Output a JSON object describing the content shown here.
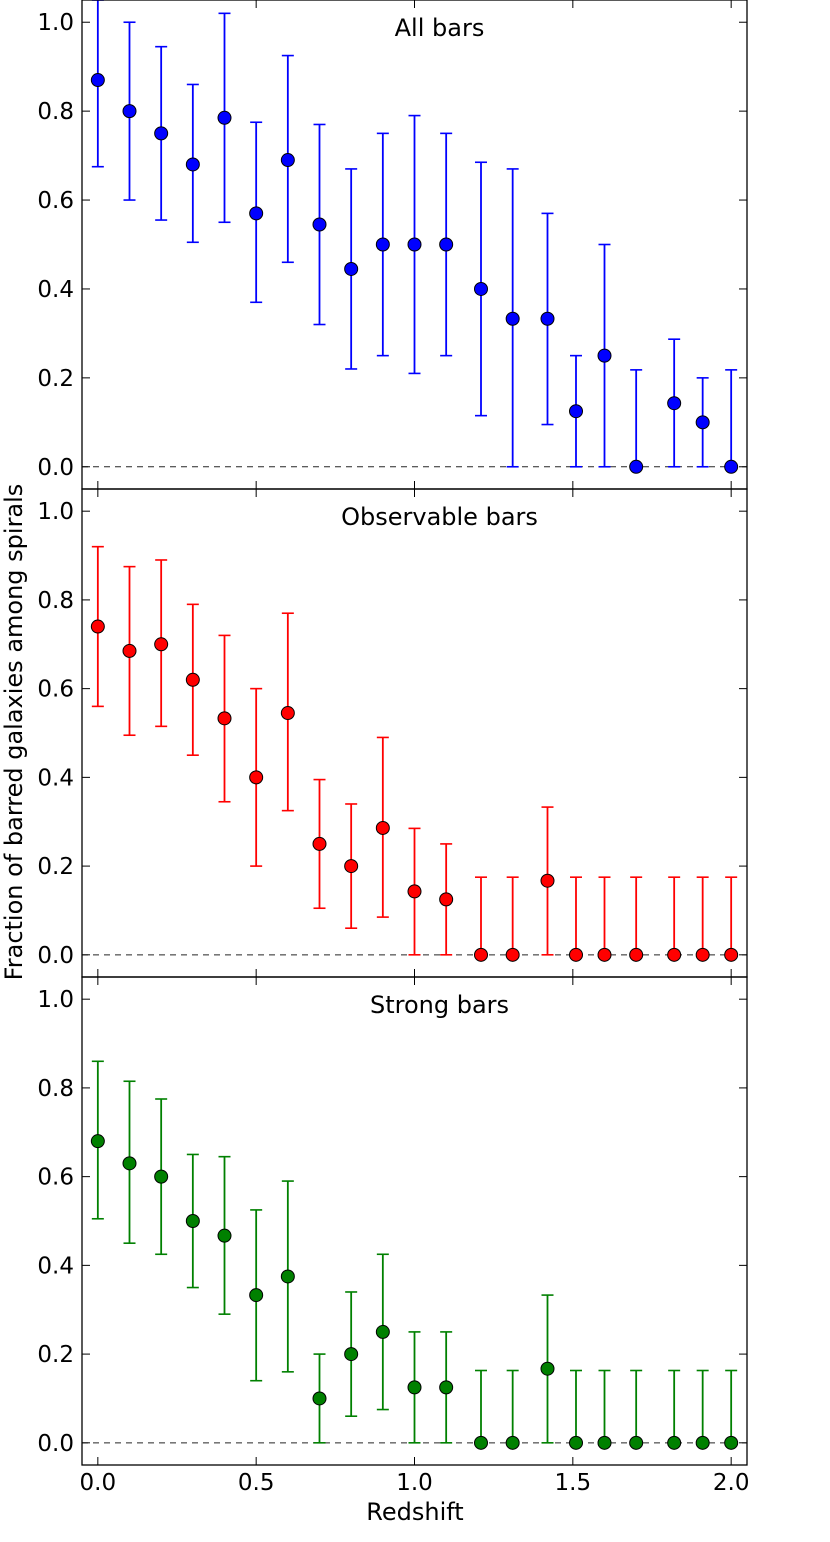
{
  "chart_data": {
    "type": "scatter",
    "ylabel": "Fraction of barred galaxies among spirals",
    "xlabel": "Redshift",
    "xlim": [
      -0.05,
      2.05
    ],
    "ylim": [
      -0.05,
      1.05
    ],
    "xticks": [
      "0.0",
      "0.5",
      "1.0",
      "1.5",
      "2.0"
    ],
    "xtick_values": [
      0.0,
      0.5,
      1.0,
      1.5,
      2.0
    ],
    "yticks": [
      "0.0",
      "0.2",
      "0.4",
      "0.6",
      "0.8",
      "1.0"
    ],
    "ytick_values": [
      0.0,
      0.2,
      0.4,
      0.6,
      0.8,
      1.0
    ],
    "reference_line": 0.0,
    "panels": [
      {
        "title": "All bars",
        "color": "#0000ff",
        "x": [
          0.0,
          0.1,
          0.2,
          0.3,
          0.4,
          0.5,
          0.6,
          0.7,
          0.8,
          0.9,
          1.0,
          1.1,
          1.21,
          1.31,
          1.42,
          1.51,
          1.6,
          1.7,
          1.82,
          1.91,
          2.0
        ],
        "y": [
          0.87,
          0.8,
          0.75,
          0.68,
          0.785,
          0.57,
          0.69,
          0.545,
          0.445,
          0.5,
          0.5,
          0.5,
          0.4,
          0.333,
          0.333,
          0.125,
          0.25,
          0.0,
          0.143,
          0.1,
          0.0
        ],
        "lo": [
          0.675,
          0.6,
          0.555,
          0.505,
          0.55,
          0.37,
          0.46,
          0.32,
          0.22,
          0.25,
          0.21,
          0.25,
          0.115,
          0.0,
          0.095,
          0.0,
          0.0,
          0.0,
          0.0,
          0.0,
          0.0
        ],
        "hi": [
          1.05,
          1.0,
          0.945,
          0.86,
          1.02,
          0.775,
          0.925,
          0.77,
          0.67,
          0.75,
          0.79,
          0.75,
          0.685,
          0.67,
          0.57,
          0.25,
          0.5,
          0.218,
          0.287,
          0.2,
          0.218
        ]
      },
      {
        "title": "Observable bars",
        "color": "#ff0000",
        "x": [
          0.0,
          0.1,
          0.2,
          0.3,
          0.4,
          0.5,
          0.6,
          0.7,
          0.8,
          0.9,
          1.0,
          1.1,
          1.21,
          1.31,
          1.42,
          1.51,
          1.6,
          1.7,
          1.82,
          1.91,
          2.0
        ],
        "y": [
          0.74,
          0.685,
          0.7,
          0.62,
          0.533,
          0.4,
          0.545,
          0.25,
          0.2,
          0.286,
          0.143,
          0.125,
          0.0,
          0.0,
          0.167,
          0.0,
          0.0,
          0.0,
          0.0,
          0.0,
          0.0
        ],
        "lo": [
          0.56,
          0.495,
          0.515,
          0.45,
          0.345,
          0.2,
          0.325,
          0.105,
          0.06,
          0.085,
          0.0,
          0.0,
          0.0,
          0.0,
          0.0,
          0.0,
          0.0,
          0.0,
          0.0,
          0.0,
          0.0
        ],
        "hi": [
          0.92,
          0.875,
          0.89,
          0.79,
          0.72,
          0.6,
          0.77,
          0.395,
          0.34,
          0.49,
          0.285,
          0.25,
          0.175,
          0.175,
          0.333,
          0.175,
          0.175,
          0.175,
          0.175,
          0.175,
          0.175
        ]
      },
      {
        "title": "Strong bars",
        "color": "#008000",
        "x": [
          0.0,
          0.1,
          0.2,
          0.3,
          0.4,
          0.5,
          0.6,
          0.7,
          0.8,
          0.9,
          1.0,
          1.1,
          1.21,
          1.31,
          1.42,
          1.51,
          1.6,
          1.7,
          1.82,
          1.91,
          2.0
        ],
        "y": [
          0.68,
          0.63,
          0.6,
          0.5,
          0.467,
          0.333,
          0.375,
          0.1,
          0.2,
          0.25,
          0.125,
          0.125,
          0.0,
          0.0,
          0.167,
          0.0,
          0.0,
          0.0,
          0.0,
          0.0,
          0.0
        ],
        "lo": [
          0.505,
          0.45,
          0.425,
          0.35,
          0.29,
          0.14,
          0.16,
          0.0,
          0.06,
          0.075,
          0.0,
          0.0,
          0.0,
          0.0,
          0.0,
          0.0,
          0.0,
          0.0,
          0.0,
          0.0,
          0.0
        ],
        "hi": [
          0.86,
          0.815,
          0.775,
          0.65,
          0.645,
          0.525,
          0.59,
          0.2,
          0.34,
          0.425,
          0.25,
          0.25,
          0.163,
          0.163,
          0.333,
          0.163,
          0.163,
          0.163,
          0.163,
          0.163,
          0.163
        ]
      }
    ]
  }
}
